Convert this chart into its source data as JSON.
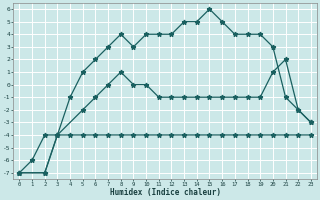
{
  "xlabel": "Humidex (Indice chaleur)",
  "bg_color": "#cce8e8",
  "grid_color": "#ffffff",
  "line_color": "#1a6060",
  "xlim": [
    -0.5,
    23.5
  ],
  "ylim": [
    -7.5,
    6.5
  ],
  "xticks": [
    0,
    1,
    2,
    3,
    4,
    5,
    6,
    7,
    8,
    9,
    10,
    11,
    12,
    13,
    14,
    15,
    16,
    17,
    18,
    19,
    20,
    21,
    22,
    23
  ],
  "yticks": [
    6,
    5,
    4,
    3,
    2,
    1,
    0,
    -1,
    -2,
    -3,
    -4,
    -5,
    -6,
    -7
  ],
  "line1_x": [
    0,
    1,
    2,
    3,
    4,
    5,
    6,
    7,
    8,
    9,
    10,
    11,
    12,
    13,
    14,
    15,
    16,
    17,
    18,
    19,
    20,
    21,
    22,
    23
  ],
  "line1_y": [
    -7,
    -6,
    -4,
    -4,
    -4,
    -4,
    -4,
    -4,
    -4,
    -4,
    -4,
    -4,
    -4,
    -4,
    -4,
    -4,
    -4,
    -4,
    -4,
    -4,
    -4,
    -4,
    -4,
    -4
  ],
  "line2_x": [
    0,
    2,
    3,
    5,
    6,
    7,
    8,
    9,
    10,
    11,
    12,
    13,
    14,
    15,
    16,
    17,
    18,
    19,
    20,
    21,
    22,
    23
  ],
  "line2_y": [
    -7,
    -7,
    -4,
    -2,
    -1,
    0,
    1,
    0,
    0,
    -1,
    -1,
    -1,
    -1,
    -1,
    -1,
    -1,
    -1,
    -1,
    1,
    2,
    -2,
    -3
  ],
  "line3_x": [
    0,
    2,
    3,
    4,
    5,
    6,
    7,
    8,
    9,
    10,
    11,
    12,
    13,
    14,
    15,
    16,
    17,
    18,
    19,
    20,
    21,
    22,
    23
  ],
  "line3_y": [
    -7,
    -7,
    -4,
    -1,
    1,
    2,
    3,
    4,
    3,
    4,
    4,
    4,
    5,
    5,
    6,
    5,
    4,
    4,
    4,
    3,
    -1,
    -2,
    -3
  ]
}
